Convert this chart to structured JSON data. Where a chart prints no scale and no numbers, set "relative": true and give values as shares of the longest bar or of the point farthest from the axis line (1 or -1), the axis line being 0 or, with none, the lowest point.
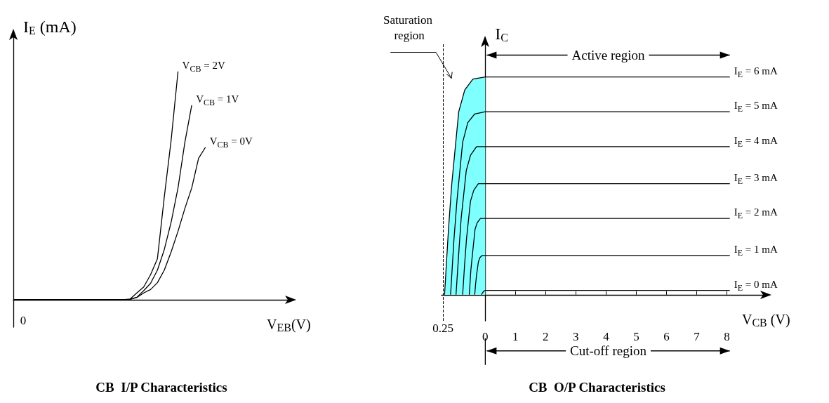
{
  "chart_data": [
    {
      "type": "line",
      "title": "CB  I/P Characteristics",
      "xlabel": "V$_{EB}$(V)",
      "ylabel": "I$_{E}$ (mA)",
      "relative": true,
      "annotations": [
        "0"
      ],
      "categories": [
        null,
        null,
        null,
        null,
        null,
        null,
        null,
        null,
        null,
        null,
        null,
        null,
        null,
        null,
        null,
        null,
        null,
        null,
        null,
        null,
        null,
        null,
        null,
        null,
        null,
        null,
        null,
        null,
        null,
        null,
        null,
        null,
        null,
        null,
        null,
        null,
        null,
        null,
        null,
        null,
        null
      ],
      "series": [
        {
          "name": "V$_{CB}$ = 2V",
          "color": "#000000",
          "values": [
            0,
            0,
            0,
            0,
            0,
            0,
            0,
            0,
            0,
            0,
            0,
            0,
            0,
            0,
            0,
            0,
            0,
            0.003,
            0.03,
            0.056,
            0.11,
            0.18,
            0.45,
            0.7,
            1.0,
            null,
            null,
            null,
            null,
            null,
            null,
            null,
            null,
            null,
            null,
            null,
            null,
            null,
            null,
            null,
            null
          ]
        },
        {
          "name": "V$_{CB}$ = 1V",
          "color": "#000000",
          "values": [
            0,
            0,
            0,
            0,
            0,
            0,
            0,
            0,
            0,
            0,
            0,
            0,
            0,
            0,
            0,
            0,
            0,
            0.002,
            0.011,
            0.04,
            0.072,
            0.13,
            0.22,
            0.34,
            0.49,
            0.69,
            0.852,
            null,
            null,
            null,
            null,
            null,
            null,
            null,
            null,
            null,
            null,
            null,
            null,
            null,
            null
          ]
        },
        {
          "name": "V$_{CB}$ = 0V",
          "color": "#000000",
          "values": [
            0,
            0,
            0,
            0,
            0,
            0,
            0,
            0,
            0,
            0,
            0,
            0,
            0,
            0,
            0,
            0,
            0,
            0.002,
            0.01,
            0.03,
            0.045,
            0.075,
            0.13,
            0.21,
            0.3,
            0.4,
            0.49,
            0.62,
            0.668,
            null,
            null,
            null,
            null,
            null,
            null,
            null,
            null,
            null,
            null,
            null,
            null
          ]
        }
      ]
    },
    {
      "type": "line",
      "title": "CB  O/P Characteristics",
      "xlabel": "V$_{CB}$ (V)",
      "ylabel": "I$_{C}$",
      "relative": true,
      "xlim": [
        -1.45,
        9.2
      ],
      "xticks": [
        0,
        1,
        2,
        3,
        4,
        5,
        6,
        7,
        8
      ],
      "ref_lines": [
        {
          "axis": "x",
          "value": -1.4,
          "line_style": "dashed",
          "color": "#000000"
        }
      ],
      "annotations": [
        "Saturation region",
        {
          "text": "0.25",
          "x": -1.4,
          "y": 0
        },
        "Active region",
        "Cut-off region"
      ],
      "series": [
        {
          "type": "area",
          "color": "#80ffff",
          "x": [
            -1.35,
            -1.22,
            -1.11,
            -0.88,
            -0.68,
            -0.41,
            0
          ],
          "values": [
            0,
            0.3,
            0.51,
            0.84,
            0.94,
            0.99,
            1
          ]
        },
        {
          "name": "I$_{E}$ = 6 mA",
          "color": "#000000",
          "x": [
            -1.35,
            -1.22,
            -1.11,
            -0.88,
            -0.68,
            -0.41,
            0,
            8.1
          ],
          "values": [
            0,
            0.3,
            0.51,
            0.84,
            0.94,
            0.99,
            1,
            1
          ]
        },
        {
          "name": "I$_{E}$ = 5 mA",
          "color": "#000000",
          "x": [
            -1.15,
            -1.04,
            -0.94,
            -0.75,
            -0.58,
            -0.35,
            0,
            8.1
          ],
          "values": [
            0,
            0.25,
            0.43,
            0.7,
            0.79,
            0.83,
            0.84,
            0.84
          ]
        },
        {
          "name": "I$_{E}$ = 4 mA",
          "color": "#000000",
          "x": [
            -0.97,
            -0.87,
            -0.8,
            -0.63,
            -0.49,
            -0.29,
            0,
            8.1
          ],
          "values": [
            0,
            0.21,
            0.35,
            0.57,
            0.64,
            0.68,
            0.68,
            0.68
          ]
        },
        {
          "name": "I$_{E}$ = 3 mA",
          "color": "#000000",
          "x": [
            -0.75,
            -0.68,
            -0.62,
            -0.49,
            -0.38,
            -0.23,
            0,
            8.1
          ],
          "values": [
            0,
            0.15,
            0.26,
            0.43,
            0.48,
            0.51,
            0.51,
            0.51
          ]
        },
        {
          "name": "I$_{E}$ = 2 mA",
          "color": "#000000",
          "x": [
            -0.53,
            -0.48,
            -0.43,
            -0.34,
            -0.27,
            -0.16,
            0,
            8.1
          ],
          "values": [
            0,
            0.11,
            0.18,
            0.3,
            0.33,
            0.35,
            0.35,
            0.35
          ]
        },
        {
          "name": "I$_{E}$ = 1 mA",
          "color": "#000000",
          "x": [
            -0.35,
            -0.32,
            -0.29,
            -0.23,
            -0.18,
            -0.11,
            0,
            8.1
          ],
          "values": [
            0,
            0.05,
            0.09,
            0.15,
            0.17,
            0.18,
            0.18,
            0.18
          ]
        },
        {
          "name": "I$_{E}$ = 0 mA",
          "color": "#000000",
          "x": [
            -0.13,
            -0.06,
            0,
            8.1
          ],
          "values": [
            0,
            0.015,
            0.02,
            0.02
          ]
        }
      ]
    }
  ]
}
